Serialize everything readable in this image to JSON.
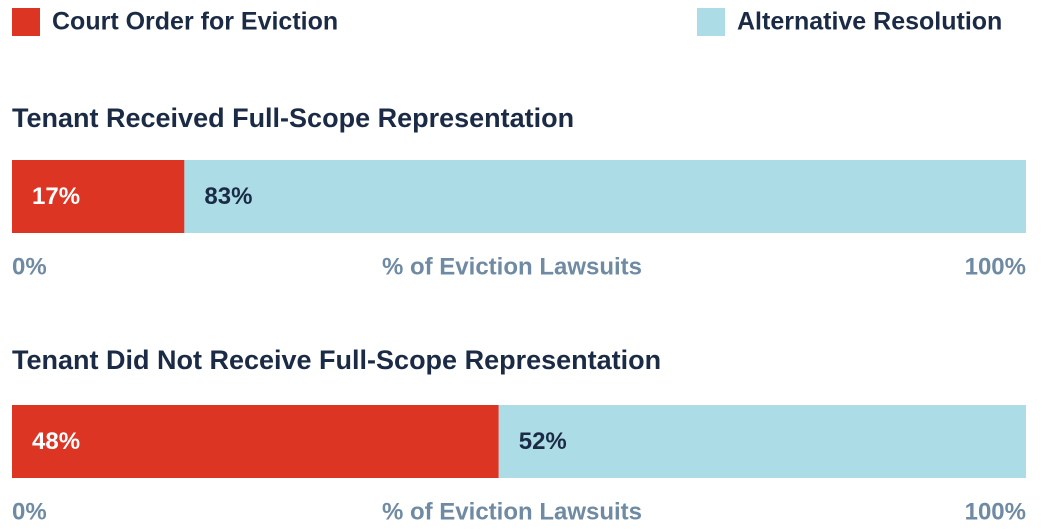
{
  "chart_data": {
    "type": "bar",
    "orientation": "horizontal",
    "stacked": true,
    "categories": [
      "Tenant Received Full-Scope Representation",
      "Tenant Did Not Receive Full-Scope Representation"
    ],
    "series": [
      {
        "name": "Court Order for Eviction",
        "color": "#dd3524",
        "values": [
          17,
          48
        ],
        "value_labels": [
          "17%",
          "48%"
        ]
      },
      {
        "name": "Alternative Resolution",
        "color": "#acdce6",
        "values": [
          83,
          52
        ],
        "value_labels": [
          "83%",
          "52%"
        ]
      }
    ],
    "xlabel": "% of Eviction Lawsuits",
    "xlim": [
      0,
      100
    ],
    "xticks": [
      {
        "value": 0,
        "label": "0%"
      },
      {
        "value": 100,
        "label": "100%"
      }
    ]
  }
}
